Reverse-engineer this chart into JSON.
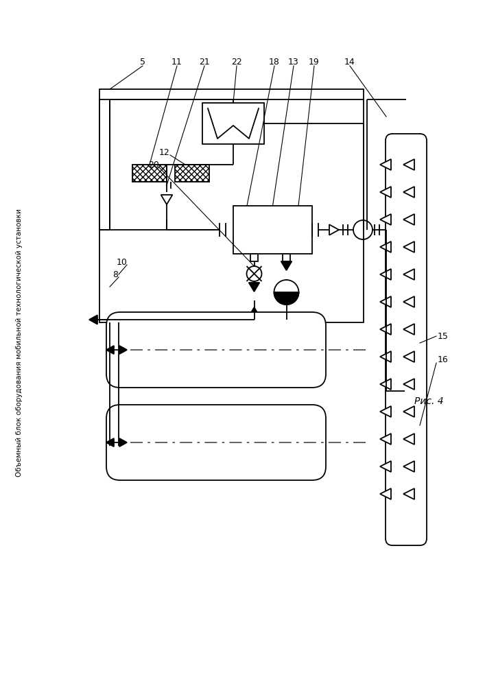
{
  "sidebar_text": "Объемный блок оборудования мобильной технологической установки",
  "fig_label": "Рис. 4",
  "bg_color": "#ffffff",
  "line_color": "#000000",
  "lw": 1.3
}
